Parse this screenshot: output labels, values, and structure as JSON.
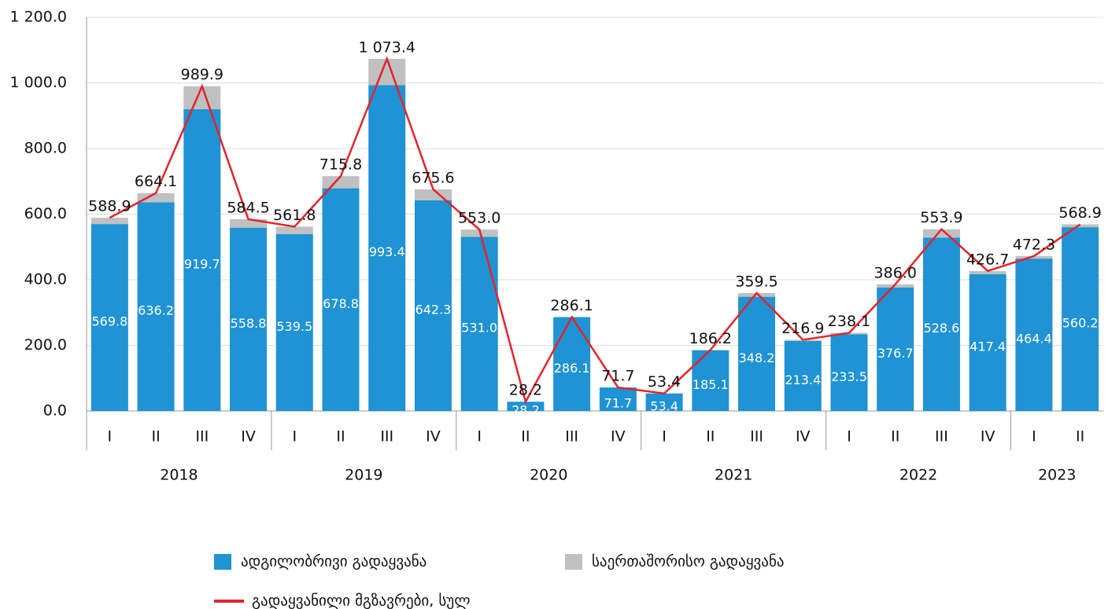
{
  "chart_data": {
    "type": "bar",
    "stacked": true,
    "categories": [
      "I",
      "II",
      "III",
      "IV",
      "I",
      "II",
      "III",
      "IV",
      "I",
      "II",
      "III",
      "IV",
      "I",
      "II",
      "III",
      "IV",
      "I",
      "II",
      "III",
      "IV",
      "I",
      "II"
    ],
    "groups": [
      "2018",
      "2019",
      "2020",
      "2021",
      "2022",
      "2023"
    ],
    "series": [
      {
        "name": "ადგილობრივი გადაყვანა",
        "type": "bar",
        "color": "#1f93d3",
        "values": [
          569.8,
          636.2,
          919.7,
          558.8,
          539.5,
          678.8,
          993.4,
          642.3,
          531.0,
          28.2,
          286.1,
          71.7,
          53.4,
          185.1,
          348.2,
          213.4,
          233.5,
          376.7,
          528.6,
          417.4,
          464.4,
          560.2
        ],
        "value_labels": [
          "569.8",
          "636.2",
          "919.7",
          "558.8",
          "539.5",
          "678.8",
          "993.4",
          "642.3",
          "531.0",
          "28.2",
          "286.1",
          "71.7",
          "53.4",
          "185.1",
          "348.2",
          "213.4",
          "233.5",
          "376.7",
          "528.6",
          "417.4",
          "464.4",
          "560.2"
        ]
      },
      {
        "name": "საერთაშორისო გადაყვანა",
        "type": "bar",
        "color": "#c0c0c0",
        "values": [
          19.1,
          27.9,
          70.2,
          25.7,
          22.3,
          37.0,
          80.0,
          33.3,
          22.0,
          0,
          0,
          0,
          0,
          1.1,
          11.3,
          3.5,
          4.6,
          9.3,
          25.3,
          9.3,
          7.9,
          8.7
        ]
      },
      {
        "name": "გადაყვანილი მგზავრები, სულ",
        "type": "line",
        "color": "#e3242b",
        "values": [
          588.9,
          664.1,
          989.9,
          584.5,
          561.8,
          715.8,
          1073.4,
          675.6,
          553.0,
          28.2,
          286.1,
          71.7,
          53.4,
          186.2,
          359.5,
          216.9,
          238.1,
          386.0,
          553.9,
          426.7,
          472.3,
          568.9
        ],
        "value_labels": [
          "588.9",
          "664.1",
          "989.9",
          "584.5",
          "561.8",
          "715.8",
          "1 073.4",
          "675.6",
          "553.0",
          "28.2",
          "286.1",
          "71.7",
          "53.4",
          "186.2",
          "359.5",
          "216.9",
          "238.1",
          "386.0",
          "553.9",
          "426.7",
          "472.3",
          "568.9"
        ]
      }
    ],
    "ylim": [
      0,
      1200
    ],
    "yticks": [
      {
        "value": 0,
        "label": "0.0"
      },
      {
        "value": 200,
        "label": "200.0"
      },
      {
        "value": 400,
        "label": "400.0"
      },
      {
        "value": 600,
        "label": "600.0"
      },
      {
        "value": 800,
        "label": "800.0"
      },
      {
        "value": 1000,
        "label": "1 000.0"
      },
      {
        "value": 1200,
        "label": "1 200.0"
      }
    ],
    "grid": true,
    "legend": "bottom"
  }
}
